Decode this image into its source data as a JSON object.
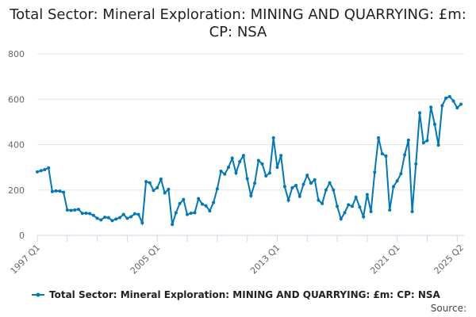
{
  "chart_data": {
    "type": "line",
    "title": "Total Sector: Mineral Exploration: MINING AND QUARRYING: £m: CP: NSA",
    "xlabel": "",
    "ylabel": "",
    "ylim": [
      0,
      800
    ],
    "yticks": [
      0,
      200,
      400,
      600,
      800
    ],
    "xtick_labels": [
      "1997 Q1",
      "2005 Q1",
      "2013 Q1",
      "2021 Q1",
      "2025 Q2"
    ],
    "grid": true,
    "legend_position": "bottom",
    "color": "#0077bb",
    "start": "1997 Q1",
    "end": "2025 Q2",
    "frequency": "quarterly",
    "series": [
      {
        "name": "Total Sector: Mineral Exploration: MINING AND QUARRYING: £m: CP: NSA",
        "values": [
          280,
          285,
          290,
          298,
          193,
          196,
          195,
          190,
          112,
          110,
          112,
          115,
          97,
          98,
          96,
          88,
          75,
          68,
          80,
          78,
          65,
          72,
          78,
          92,
          75,
          82,
          95,
          92,
          55,
          237,
          232,
          198,
          210,
          248,
          187,
          203,
          48,
          100,
          140,
          158,
          92,
          98,
          100,
          162,
          138,
          130,
          108,
          145,
          205,
          283,
          270,
          300,
          340,
          275,
          325,
          352,
          250,
          175,
          230,
          330,
          315,
          262,
          275,
          430,
          300,
          352,
          215,
          155,
          210,
          220,
          172,
          225,
          265,
          230,
          245,
          155,
          140,
          200,
          232,
          200,
          128,
          72,
          100,
          135,
          128,
          168,
          125,
          82,
          180,
          105,
          278,
          430,
          360,
          350,
          112,
          215,
          240,
          272,
          355,
          420,
          105,
          315,
          540,
          408,
          418,
          565,
          490,
          398,
          572,
          605,
          612,
          592,
          562,
          578
        ]
      }
    ]
  },
  "source_label": "Source:"
}
